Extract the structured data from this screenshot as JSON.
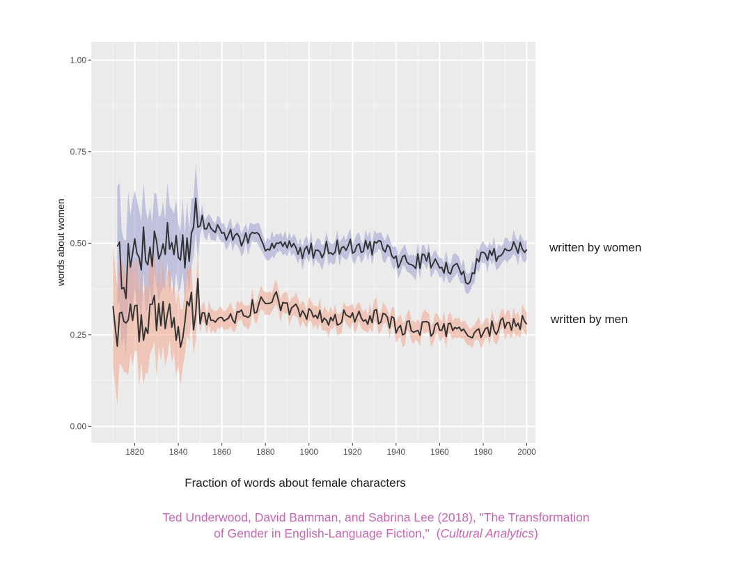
{
  "chart_data": {
    "type": "line",
    "title": "",
    "xlabel": "Fraction of words about female characters",
    "ylabel": "words about women",
    "xlim": [
      1800,
      2004
    ],
    "ylim": [
      -0.045,
      1.05
    ],
    "xticks": [
      1820,
      1840,
      1860,
      1880,
      1900,
      1920,
      1940,
      1960,
      1980,
      2000
    ],
    "xtick_labels": [
      "1820",
      "1840",
      "1860",
      "1880",
      "1900",
      "1920",
      "1940",
      "1960",
      "1980",
      "2000"
    ],
    "yticks": [
      0.0,
      0.25,
      0.5,
      0.75,
      1.0
    ],
    "ytick_labels": [
      "0.00",
      "0.25",
      "0.50",
      "0.75",
      "1.00"
    ],
    "grid": true,
    "series": [
      {
        "name": "written by women",
        "line_color": "#333333",
        "band_color": "#9a9fd1",
        "knots": [
          {
            "x": 1812,
            "y": 0.53
          },
          {
            "x": 1815,
            "y": 0.4
          },
          {
            "x": 1820,
            "y": 0.47
          },
          {
            "x": 1825,
            "y": 0.5
          },
          {
            "x": 1830,
            "y": 0.49
          },
          {
            "x": 1835,
            "y": 0.5
          },
          {
            "x": 1840,
            "y": 0.51
          },
          {
            "x": 1845,
            "y": 0.47
          },
          {
            "x": 1848,
            "y": 0.58
          },
          {
            "x": 1850,
            "y": 0.56
          },
          {
            "x": 1855,
            "y": 0.54
          },
          {
            "x": 1860,
            "y": 0.53
          },
          {
            "x": 1865,
            "y": 0.52
          },
          {
            "x": 1870,
            "y": 0.51
          },
          {
            "x": 1875,
            "y": 0.51
          },
          {
            "x": 1880,
            "y": 0.5
          },
          {
            "x": 1885,
            "y": 0.5
          },
          {
            "x": 1890,
            "y": 0.49
          },
          {
            "x": 1895,
            "y": 0.48
          },
          {
            "x": 1900,
            "y": 0.48
          },
          {
            "x": 1905,
            "y": 0.48
          },
          {
            "x": 1910,
            "y": 0.49
          },
          {
            "x": 1915,
            "y": 0.49
          },
          {
            "x": 1920,
            "y": 0.49
          },
          {
            "x": 1925,
            "y": 0.49
          },
          {
            "x": 1930,
            "y": 0.49
          },
          {
            "x": 1935,
            "y": 0.48
          },
          {
            "x": 1937,
            "y": 0.49
          },
          {
            "x": 1940,
            "y": 0.45
          },
          {
            "x": 1945,
            "y": 0.45
          },
          {
            "x": 1950,
            "y": 0.45
          },
          {
            "x": 1955,
            "y": 0.46
          },
          {
            "x": 1960,
            "y": 0.43
          },
          {
            "x": 1965,
            "y": 0.43
          },
          {
            "x": 1970,
            "y": 0.42
          },
          {
            "x": 1973,
            "y": 0.4
          },
          {
            "x": 1975,
            "y": 0.43
          },
          {
            "x": 1980,
            "y": 0.47
          },
          {
            "x": 1985,
            "y": 0.47
          },
          {
            "x": 1990,
            "y": 0.48
          },
          {
            "x": 1995,
            "y": 0.49
          },
          {
            "x": 2000,
            "y": 0.48
          }
        ]
      },
      {
        "name": "written by men",
        "line_color": "#333333",
        "band_color": "#f0a58c",
        "knots": [
          {
            "x": 1810,
            "y": 0.36
          },
          {
            "x": 1812,
            "y": 0.24
          },
          {
            "x": 1815,
            "y": 0.3
          },
          {
            "x": 1820,
            "y": 0.27
          },
          {
            "x": 1825,
            "y": 0.28
          },
          {
            "x": 1830,
            "y": 0.29
          },
          {
            "x": 1835,
            "y": 0.28
          },
          {
            "x": 1840,
            "y": 0.28
          },
          {
            "x": 1845,
            "y": 0.27
          },
          {
            "x": 1848,
            "y": 0.36
          },
          {
            "x": 1850,
            "y": 0.3
          },
          {
            "x": 1855,
            "y": 0.29
          },
          {
            "x": 1860,
            "y": 0.3
          },
          {
            "x": 1865,
            "y": 0.29
          },
          {
            "x": 1870,
            "y": 0.31
          },
          {
            "x": 1875,
            "y": 0.33
          },
          {
            "x": 1880,
            "y": 0.34
          },
          {
            "x": 1885,
            "y": 0.35
          },
          {
            "x": 1890,
            "y": 0.32
          },
          {
            "x": 1895,
            "y": 0.31
          },
          {
            "x": 1900,
            "y": 0.3
          },
          {
            "x": 1905,
            "y": 0.3
          },
          {
            "x": 1910,
            "y": 0.29
          },
          {
            "x": 1915,
            "y": 0.3
          },
          {
            "x": 1920,
            "y": 0.29
          },
          {
            "x": 1925,
            "y": 0.3
          },
          {
            "x": 1930,
            "y": 0.3
          },
          {
            "x": 1935,
            "y": 0.29
          },
          {
            "x": 1940,
            "y": 0.27
          },
          {
            "x": 1945,
            "y": 0.27
          },
          {
            "x": 1950,
            "y": 0.27
          },
          {
            "x": 1955,
            "y": 0.27
          },
          {
            "x": 1960,
            "y": 0.26
          },
          {
            "x": 1965,
            "y": 0.26
          },
          {
            "x": 1970,
            "y": 0.25
          },
          {
            "x": 1975,
            "y": 0.25
          },
          {
            "x": 1980,
            "y": 0.26
          },
          {
            "x": 1985,
            "y": 0.27
          },
          {
            "x": 1990,
            "y": 0.28
          },
          {
            "x": 1995,
            "y": 0.28
          },
          {
            "x": 2000,
            "y": 0.29
          }
        ]
      }
    ],
    "annotations": [
      "written by women",
      "written by men"
    ]
  },
  "caption": {
    "line1": "Ted Underwood, David Bamman, and Sabrina Lee (2018), \"The Transformation",
    "line2_prefix": "of Gender in English-Language Fiction,\"  (",
    "line2_journal": "Cultural Analytics",
    "line2_suffix": ")"
  },
  "colors": {
    "panel": "#ebebeb",
    "grid_major": "#ffffff",
    "caption": "#c766b3"
  }
}
